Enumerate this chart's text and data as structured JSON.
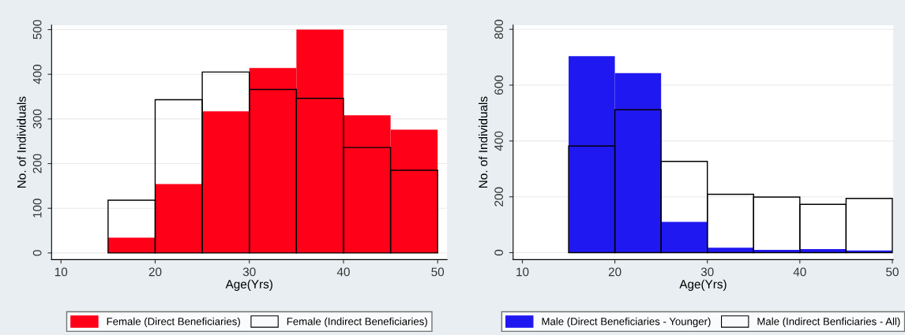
{
  "chart_data": [
    {
      "type": "histogram",
      "xlabel": "Age(Yrs)",
      "ylabel": "No. of Individuals",
      "bins": [
        15,
        20,
        25,
        30,
        35,
        40,
        45,
        50
      ],
      "series": [
        {
          "name": "Female (Direct Beneficiaries)",
          "color": "#ff0019",
          "values": [
            34,
            154,
            317,
            414,
            500,
            308,
            276
          ]
        },
        {
          "name": "Female (Indirect Beneficiaries)",
          "color": "#000000",
          "values": [
            118,
            343,
            405,
            366,
            346,
            236,
            185
          ]
        }
      ],
      "xlim": [
        9,
        51
      ],
      "xticks": [
        10,
        20,
        30,
        40,
        50
      ],
      "ylim": [
        -15,
        510
      ],
      "yticks": [
        0,
        100,
        200,
        300,
        400,
        500
      ],
      "grid": "y",
      "legend": "bottom"
    },
    {
      "type": "histogram",
      "xlabel": "Age(Yrs)",
      "ylabel": "No. of Individuals",
      "bins": [
        15,
        20,
        25,
        30,
        35,
        40,
        45,
        50
      ],
      "series": [
        {
          "name": "Male (Direct Beneficiaries - Younger)",
          "color": "#2018f0",
          "values": [
            704,
            643,
            110,
            18,
            10,
            13,
            8
          ]
        },
        {
          "name": "Male (Indirect Benficiaries - All)",
          "color": "#000000",
          "values": [
            382,
            512,
            327,
            209,
            199,
            173,
            194
          ]
        }
      ],
      "xlim": [
        9,
        50.1
      ],
      "xticks": [
        10,
        20,
        30,
        40,
        50
      ],
      "ylim": [
        -25,
        815
      ],
      "yticks": [
        0,
        200,
        400,
        600,
        800
      ],
      "grid": "y",
      "legend": "bottom"
    }
  ]
}
